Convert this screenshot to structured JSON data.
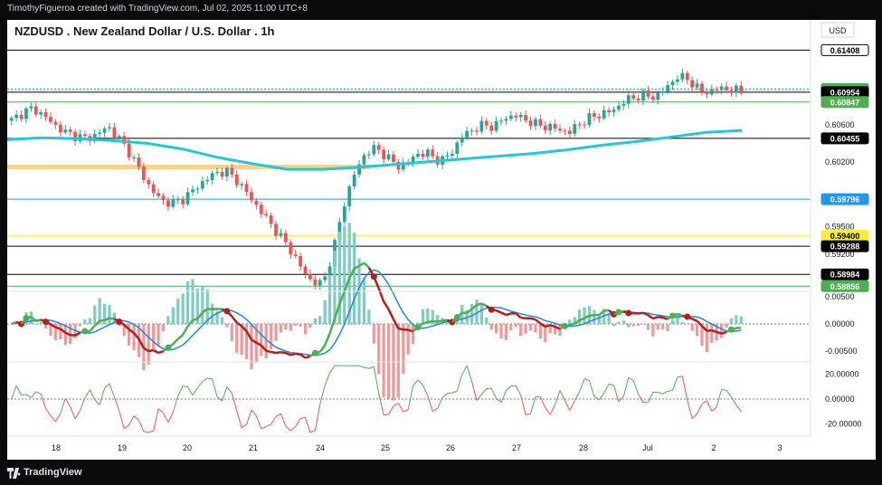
{
  "header": {
    "attribution": "TimothyFigueroa created with TradingView.com, Jul 02, 2025 11:00 UTC+8"
  },
  "chart": {
    "title": "NZDUSD . New Zealand Dollar / U.S. Dollar . 1h",
    "currency": "USD",
    "price_ticks": [
      "0.60600",
      "0.60200",
      "0.59500",
      "0.59200"
    ],
    "price_labels": [
      {
        "value": "0.61408",
        "bg": "#ffffff",
        "fg": "#000000",
        "line": "#000000"
      },
      {
        "value": "0.60988",
        "bg": "#4caf50",
        "fg": "#ffffff",
        "line": "#26a69a"
      },
      {
        "value": "0.60954",
        "bg": "#000000",
        "fg": "#ffffff",
        "line": "#000000"
      },
      {
        "value": "0.60847",
        "bg": "#4caf50",
        "fg": "#ffffff",
        "line": "#4caf50"
      },
      {
        "value": "0.60455",
        "bg": "#000000",
        "fg": "#ffffff",
        "line": "#000000"
      },
      {
        "value": "0.59796",
        "bg": "#2196f3",
        "fg": "#ffffff",
        "line": "#2196f3"
      },
      {
        "value": "0.59400",
        "bg": "#ffeb3b",
        "fg": "#000000",
        "line": "#ffeb3b"
      },
      {
        "value": "0.59288",
        "bg": "#000000",
        "fg": "#ffffff",
        "line": "#000000"
      },
      {
        "value": "0.58984",
        "bg": "#000000",
        "fg": "#ffffff",
        "line": "#000000"
      },
      {
        "value": "0.58856",
        "bg": "#4caf50",
        "fg": "#ffffff",
        "line": "#4caf50"
      }
    ],
    "macd_ticks": [
      "0.00500",
      "0.00000",
      "-0.00500"
    ],
    "osc_ticks": [
      "20.00000",
      "0.00000",
      "-20.00000"
    ],
    "x_labels": [
      "18",
      "19",
      "20",
      "21",
      "24",
      "25",
      "26",
      "27",
      "28",
      "Jul",
      "2",
      "3"
    ],
    "colors": {
      "up": "#26a69a",
      "down": "#ef5350",
      "ma": "#26c6da",
      "zone": "#ffcc80",
      "macd_fast": "#1e88e5",
      "macd_bull": "#4caf50",
      "macd_bear": "#b71c1c"
    }
  },
  "chart_data": {
    "type": "candlestick",
    "symbol": "NZDUSD",
    "interval": "1h",
    "ylim": [
      0.588,
      0.615
    ],
    "close_path": [
      0.6065,
      0.6073,
      0.6078,
      0.607,
      0.606,
      0.6052,
      0.6048,
      0.6045,
      0.605,
      0.6058,
      0.6045,
      0.603,
      0.601,
      0.599,
      0.5978,
      0.5975,
      0.598,
      0.599,
      0.6,
      0.6008,
      0.601,
      0.6,
      0.5985,
      0.597,
      0.5955,
      0.594,
      0.5925,
      0.5905,
      0.589,
      0.5888,
      0.5925,
      0.5975,
      0.6008,
      0.603,
      0.6035,
      0.6025,
      0.6015,
      0.602,
      0.603,
      0.6028,
      0.602,
      0.603,
      0.6048,
      0.6055,
      0.606,
      0.6058,
      0.6068,
      0.607,
      0.6065,
      0.606,
      0.6058,
      0.6055,
      0.6052,
      0.6062,
      0.6068,
      0.6072,
      0.6075,
      0.6085,
      0.609,
      0.6092,
      0.609,
      0.61,
      0.6112,
      0.611,
      0.6098,
      0.6095,
      0.61,
      0.6098,
      0.6096
    ],
    "ma_path": [
      0.6044,
      0.6046,
      0.6045,
      0.6043,
      0.604,
      0.6034,
      0.6025,
      0.6018,
      0.6012,
      0.6012,
      0.6014,
      0.6017,
      0.602,
      0.6023,
      0.6026,
      0.6029,
      0.6033,
      0.6038,
      0.6042,
      0.6047,
      0.6052,
      0.6054
    ],
    "zone": [
      0.6013,
      0.6017
    ],
    "macd_range": [
      -0.007,
      0.006
    ],
    "osc_range": [
      -30,
      30
    ]
  }
}
